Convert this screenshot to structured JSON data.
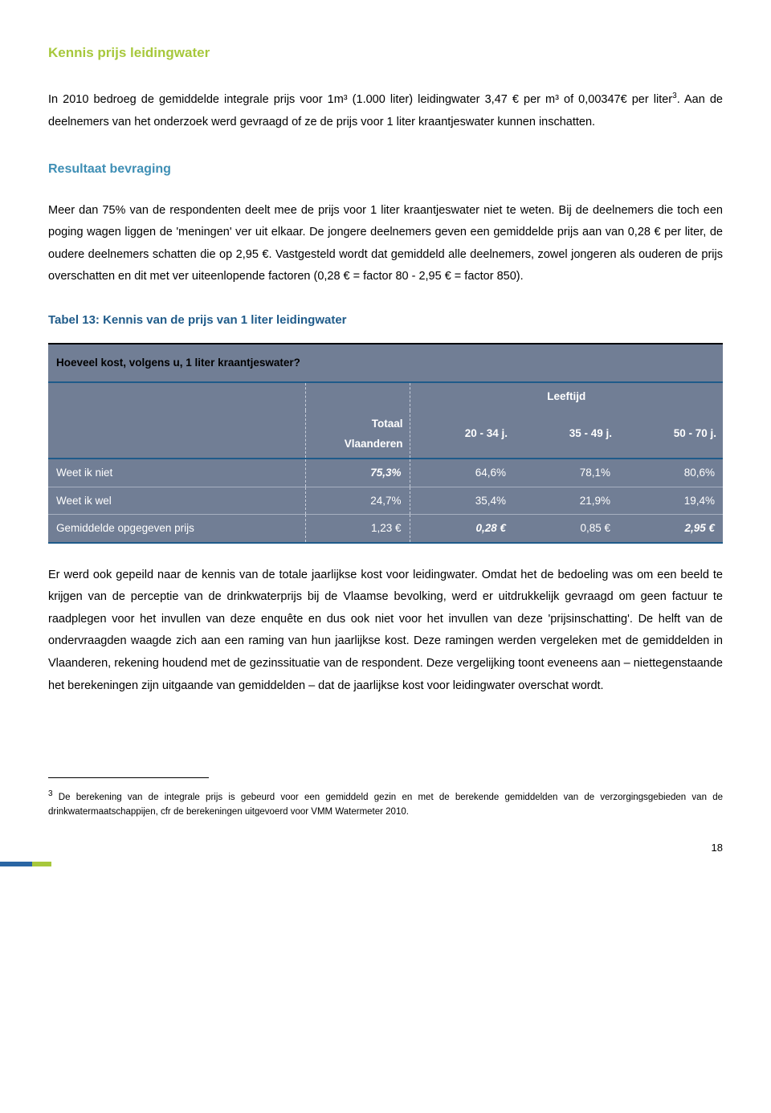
{
  "heading_green": "Kennis prijs leidingwater",
  "intro_p1": "In 2010 bedroeg de gemiddelde integrale prijs voor 1m³ (1.000 liter) leidingwater 3,47 € per m³ of 0,00347€ per liter",
  "intro_p1_tail": ". Aan de deelnemers van het onderzoek werd gevraagd of ze de prijs voor 1 liter kraantjeswater kunnen inschatten.",
  "footref1": "3",
  "heading_blue": "Resultaat bevraging",
  "result_p1": "Meer dan 75% van de respondenten deelt mee de prijs voor 1 liter kraantjeswater niet te weten. Bij de deelnemers die toch een poging wagen liggen de 'meningen' ver uit elkaar. De jongere deelnemers geven een gemiddelde prijs aan van 0,28 € per liter, de oudere deelnemers schatten die op 2,95 €. Vastgesteld wordt dat gemiddeld alle deelnemers, zowel jongeren als ouderen de prijs overschatten en dit met ver uiteenlopende factoren (0,28 € = factor 80  -  2,95 € = factor 850).",
  "table_title": "Tabel 13: Kennis van de prijs van 1 liter leidingwater",
  "table": {
    "caption": "Hoeveel kost, volgens u, 1 liter kraantjeswater?",
    "group_header": "Leeftijd",
    "col_totaal": "Totaal Vlaanderen",
    "cols": [
      "20 - 34 j.",
      "35 - 49 j.",
      "50 - 70 j."
    ],
    "rows": [
      {
        "label": "Weet ik niet",
        "totaal": "75,3%",
        "c1": "64,6%",
        "c2": "78,1%",
        "c3": "80,6%",
        "totaal_hl": true
      },
      {
        "label": "Weet ik wel",
        "totaal": "24,7%",
        "c1": "35,4%",
        "c2": "21,9%",
        "c3": "19,4%"
      },
      {
        "label": "Gemiddelde opgegeven prijs",
        "totaal": "1,23 €",
        "c1": "0,28 €",
        "c2": "0,85 €",
        "c3": "2,95 €",
        "c1_hl": true,
        "c3_hl": true
      }
    ]
  },
  "after_table_p": "Er werd ook gepeild naar de kennis van de totale jaarlijkse kost voor leidingwater. Omdat het de bedoeling was om een beeld te krijgen van de perceptie van de drinkwaterprijs bij de Vlaamse bevolking, werd er uitdrukkelijk gevraagd om geen factuur te raadplegen voor het invullen van deze enquête en dus ook niet voor het invullen van deze 'prijsinschatting'. De helft van de ondervraagden waagde zich aan een raming van hun jaarlijkse kost. Deze ramingen werden vergeleken met de gemiddelden in Vlaanderen, rekening houdend met de gezinssituatie van de respondent. Deze vergelijking toont eveneens aan – niettegenstaande het berekeningen zijn uitgaande van gemiddelden – dat de jaarlijkse kost voor leidingwater overschat wordt.",
  "footnote_num": "3",
  "footnote_text": " De berekening van de integrale prijs is gebeurd voor een gemiddeld gezin en met de berekende gemiddelden van de verzorgingsgebieden van de drinkwatermaatschappijen, cfr de berekeningen uitgevoerd voor VMM Watermeter 2010.",
  "page_number": "18"
}
